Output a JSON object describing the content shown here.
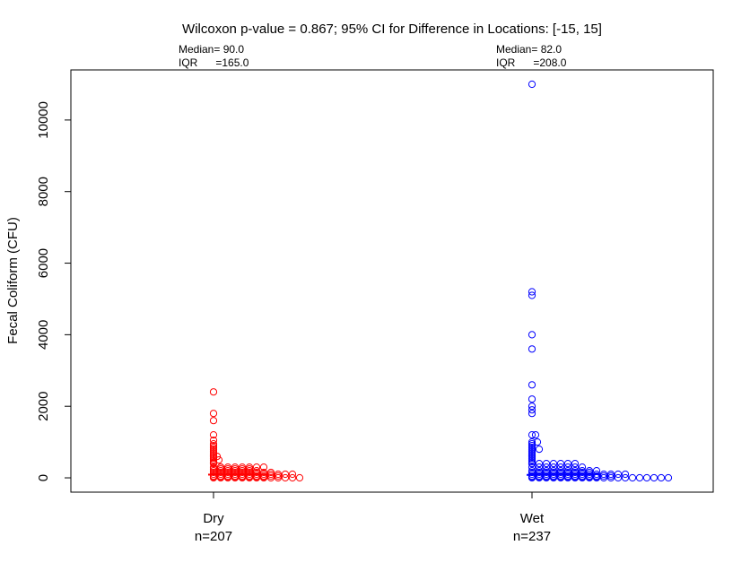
{
  "chart_data": {
    "type": "scatter",
    "title": "Wilcoxon p-value = 0.867;  95% CI for Difference in Locations: [-15, 15]",
    "ylabel": "Fecal Coliform (CFU)",
    "xlabel": "",
    "ylim": [
      -400,
      11400
    ],
    "yticks": [
      0,
      2000,
      4000,
      6000,
      8000,
      10000
    ],
    "grid": false,
    "groups": [
      {
        "name": "Dry",
        "n_label": "n=207",
        "color": "#ff0000",
        "median_label": "Median= 90.0",
        "iqr_label": "IQR      =165.0",
        "median": 90,
        "outliers": [
          2400,
          1800,
          1600,
          1200,
          1050,
          950,
          900,
          850,
          800,
          750,
          700,
          650,
          600,
          550,
          500,
          450,
          420,
          400
        ],
        "offset_outliers": [
          600,
          500,
          300
        ],
        "stacks": [
          {
            "v": 300,
            "count": 8
          },
          {
            "v": 250,
            "count": 6
          },
          {
            "v": 200,
            "count": 7
          },
          {
            "v": 150,
            "count": 9
          },
          {
            "v": 100,
            "count": 12
          },
          {
            "v": 50,
            "count": 10
          },
          {
            "v": 20,
            "count": 8
          },
          {
            "v": 0,
            "count": 13
          }
        ]
      },
      {
        "name": "Wet",
        "n_label": "n=237",
        "color": "#0000ff",
        "median_label": "Median= 82.0",
        "iqr_label": "IQR      =208.0",
        "median": 82,
        "outliers": [
          11000,
          5200,
          5100,
          4000,
          3600,
          2600,
          2200,
          2000,
          1900,
          1800,
          1200,
          1000,
          950,
          900,
          850,
          800,
          750,
          700,
          650,
          600,
          550,
          500,
          450,
          400
        ],
        "offset_outliers": [
          1200,
          1000,
          800
        ],
        "stacks": [
          {
            "v": 400,
            "count": 7
          },
          {
            "v": 300,
            "count": 8
          },
          {
            "v": 200,
            "count": 10
          },
          {
            "v": 150,
            "count": 9
          },
          {
            "v": 100,
            "count": 14
          },
          {
            "v": 50,
            "count": 12
          },
          {
            "v": 20,
            "count": 10
          },
          {
            "v": 0,
            "count": 20
          }
        ]
      }
    ]
  }
}
